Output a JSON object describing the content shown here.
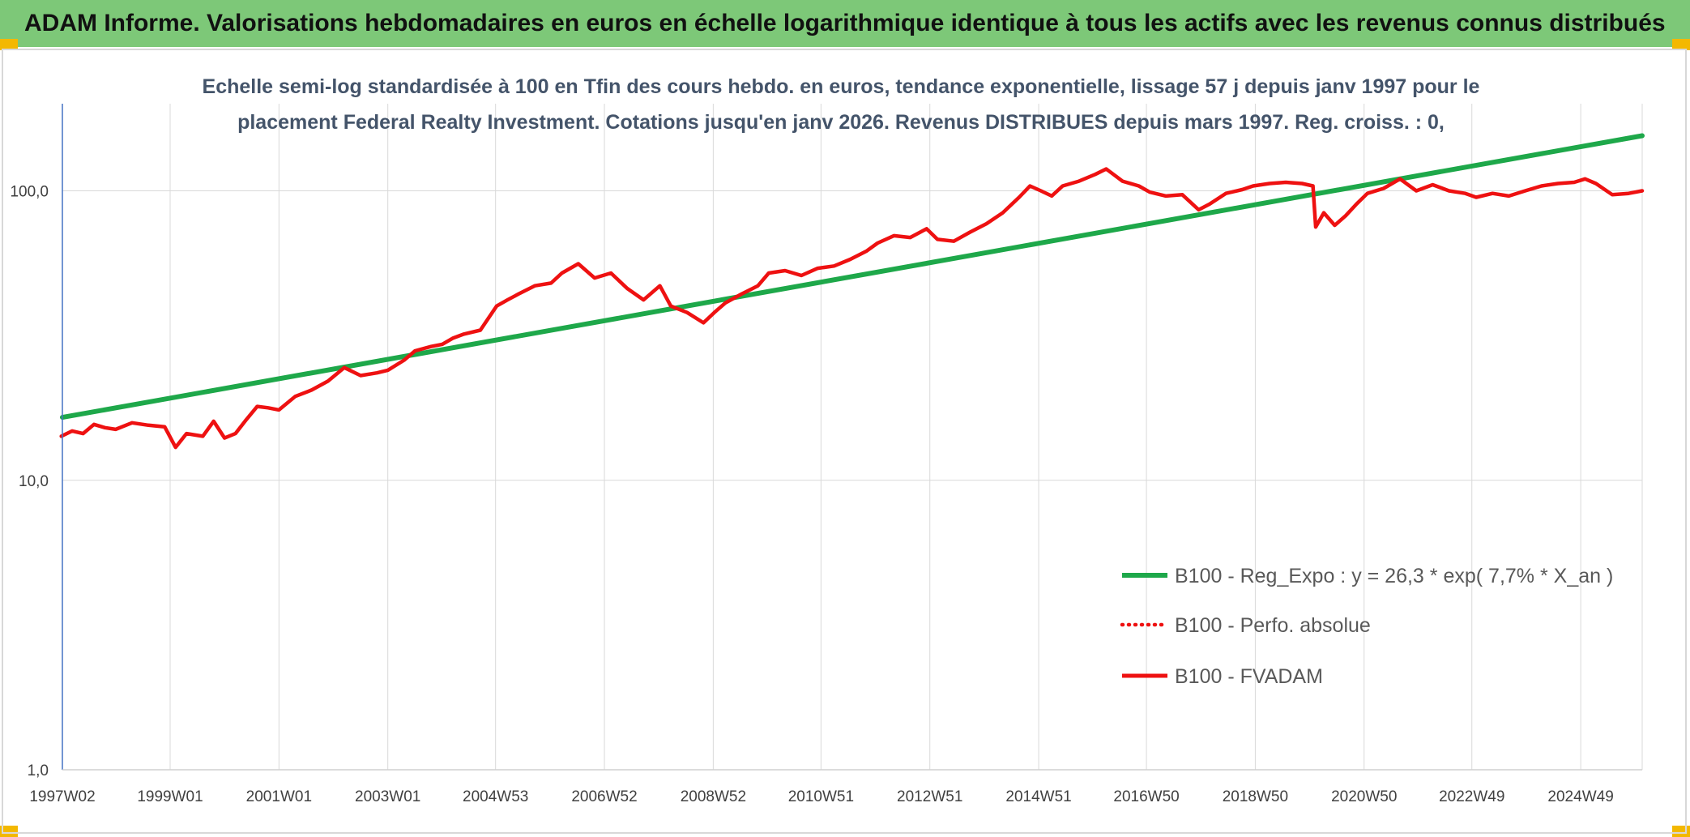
{
  "header": {
    "title": "ADAM Informe. Valorisations hebdomadaires en euros en échelle logarithmique identique à tous les actifs avec les revenus connus distribués"
  },
  "colors": {
    "header_bg": "#7dc878",
    "accent": "#f3b800",
    "trend": "#1ea84a",
    "fvadam": "#ee1111",
    "perfo": "#ee1111",
    "grid": "#d9d9d9"
  },
  "chart_data": {
    "type": "line",
    "yscale": "log",
    "title_lines": [
      "Echelle semi-log standardisée à 100 en Tfin des cours hebdo. en euros, tendance exponentielle, lissage 57 j depuis janv 1997 pour le",
      "placement Federal Realty Investment. Cotations jusqu'en janv 2026. Revenus DISTRIBUES depuis mars 1997. Reg. croiss. : 0,"
    ],
    "ylim": [
      1,
      200
    ],
    "yticks": [
      {
        "value": 1,
        "label": "1,0"
      },
      {
        "value": 10,
        "label": "10,0"
      },
      {
        "value": 100,
        "label": "100,0"
      }
    ],
    "xlim": [
      1997.02,
      2026.05
    ],
    "xticks": [
      {
        "value": 1997.02,
        "label": "1997W02"
      },
      {
        "value": 1999.0,
        "label": "1999W01"
      },
      {
        "value": 2001.0,
        "label": "2001W01"
      },
      {
        "value": 2003.0,
        "label": "2003W01"
      },
      {
        "value": 2004.98,
        "label": "2004W53"
      },
      {
        "value": 2006.98,
        "label": "2006W52"
      },
      {
        "value": 2008.98,
        "label": "2008W52"
      },
      {
        "value": 2010.96,
        "label": "2010W51"
      },
      {
        "value": 2012.96,
        "label": "2012W51"
      },
      {
        "value": 2014.96,
        "label": "2014W51"
      },
      {
        "value": 2016.94,
        "label": "2016W50"
      },
      {
        "value": 2018.94,
        "label": "2018W50"
      },
      {
        "value": 2020.94,
        "label": "2020W50"
      },
      {
        "value": 2022.92,
        "label": "2022W49"
      },
      {
        "value": 2024.92,
        "label": "2024W49"
      }
    ],
    "series": [
      {
        "name": "B100 - Reg_Expo : y = 26,3 * exp( 7,7% *  X_an )",
        "style": "thick-solid",
        "color": "#1ea84a",
        "x": [
          1997.02,
          2026.05
        ],
        "y": [
          16.5,
          155
        ]
      },
      {
        "name": "B100 - Perfo. absolue",
        "style": "dotted",
        "color": "#ee1111",
        "x": [],
        "y": []
      },
      {
        "name": "B100 - FVADAM",
        "style": "solid",
        "color": "#ee1111",
        "x": [
          1997.0,
          1997.2,
          1997.4,
          1997.6,
          1997.8,
          1998.0,
          1998.3,
          1998.6,
          1998.9,
          1999.1,
          1999.3,
          1999.6,
          1999.8,
          2000.0,
          2000.2,
          2000.4,
          2000.6,
          2000.8,
          2001.0,
          2001.3,
          2001.6,
          2001.9,
          2002.2,
          2002.5,
          2002.8,
          2003.0,
          2003.3,
          2003.5,
          2003.8,
          2004.0,
          2004.2,
          2004.4,
          2004.7,
          2005.0,
          2005.2,
          2005.4,
          2005.7,
          2006.0,
          2006.2,
          2006.5,
          2006.8,
          2007.1,
          2007.4,
          2007.7,
          2008.0,
          2008.2,
          2008.5,
          2008.8,
          2009.0,
          2009.2,
          2009.5,
          2009.8,
          2010.0,
          2010.3,
          2010.6,
          2010.9,
          2011.2,
          2011.5,
          2011.8,
          2012.0,
          2012.3,
          2012.6,
          2012.9,
          2013.1,
          2013.4,
          2013.7,
          2014.0,
          2014.3,
          2014.6,
          2014.8,
          2015.0,
          2015.2,
          2015.4,
          2015.7,
          2016.0,
          2016.2,
          2016.5,
          2016.8,
          2017.0,
          2017.3,
          2017.6,
          2017.9,
          2018.1,
          2018.4,
          2018.7,
          2018.9,
          2019.2,
          2019.5,
          2019.8,
          2020.0,
          2020.05,
          2020.2,
          2020.4,
          2020.6,
          2020.8,
          2021.0,
          2021.3,
          2021.6,
          2021.9,
          2022.2,
          2022.5,
          2022.8,
          2023.0,
          2023.3,
          2023.6,
          2023.9,
          2024.2,
          2024.5,
          2024.8,
          2025.0,
          2025.2,
          2025.5,
          2025.8,
          2026.05
        ],
        "y": [
          14.2,
          14.8,
          14.5,
          15.6,
          15.2,
          15.0,
          15.8,
          15.5,
          15.3,
          13.0,
          14.5,
          14.2,
          16.0,
          14.0,
          14.5,
          16.2,
          18.0,
          17.8,
          17.5,
          19.5,
          20.5,
          22.0,
          24.5,
          23.0,
          23.5,
          24.0,
          26.0,
          28.0,
          29.0,
          29.5,
          31.0,
          32.0,
          33.0,
          40.0,
          42.0,
          44.0,
          47.0,
          48.0,
          52.0,
          56.0,
          50.0,
          52.0,
          46.0,
          42.0,
          47.0,
          40.0,
          38.0,
          35.0,
          38.0,
          41.0,
          44.0,
          47.0,
          52.0,
          53.0,
          51.0,
          54.0,
          55.0,
          58.0,
          62.0,
          66.0,
          70.0,
          69.0,
          74.0,
          68.0,
          67.0,
          72.0,
          77.0,
          84.0,
          95.0,
          104.0,
          100.0,
          96.0,
          104.0,
          108.0,
          114.0,
          119.0,
          108.0,
          104.0,
          99.0,
          96.0,
          97.0,
          86.0,
          90.0,
          98.0,
          101.0,
          104.0,
          106.0,
          107.0,
          106.0,
          104.0,
          75.0,
          84.0,
          76.0,
          82.0,
          90.0,
          98.0,
          102.0,
          110.0,
          100.0,
          105.0,
          100.0,
          98.0,
          95.0,
          98.0,
          96.0,
          100.0,
          104.0,
          106.0,
          107.0,
          110.0,
          106.0,
          97.0,
          98.0,
          100.0
        ]
      }
    ],
    "legend_position": "bottom-right"
  }
}
